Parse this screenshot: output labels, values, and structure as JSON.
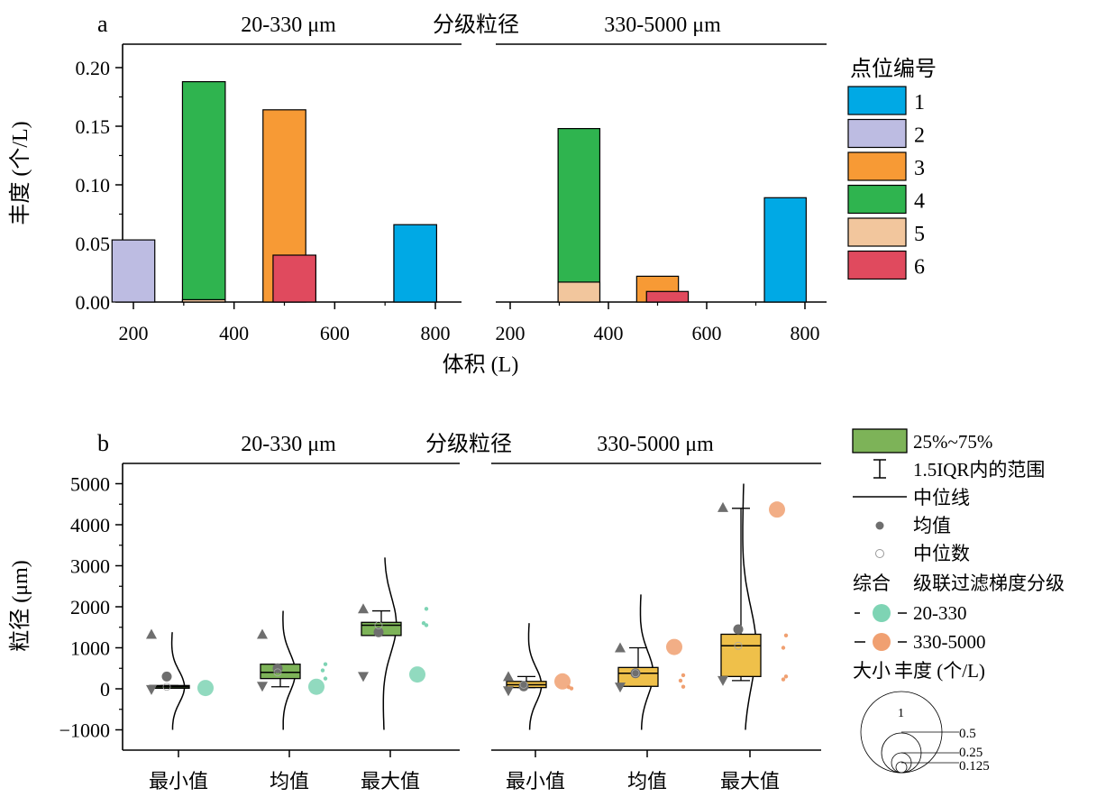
{
  "panel_a": {
    "label": "a",
    "section_left": "20-330 μm",
    "section_mid": "分级粒径",
    "section_right": "330-5000 μm",
    "ylabel": "丰度 (个/L)",
    "xlabel": "体积 (L)",
    "yticks": [
      "0.00",
      "0.05",
      "0.10",
      "0.15",
      "0.20"
    ],
    "xticks": [
      "200",
      "400",
      "600",
      "800"
    ],
    "legend_title": "点位编号",
    "legend": [
      {
        "label": "1",
        "color": "#00A9E5"
      },
      {
        "label": "2",
        "color": "#BDBCE2"
      },
      {
        "label": "3",
        "color": "#F79A35"
      },
      {
        "label": "4",
        "color": "#2FB44F"
      },
      {
        "label": "5",
        "color": "#F2C69D"
      },
      {
        "label": "6",
        "color": "#E04A5E"
      }
    ]
  },
  "panel_b": {
    "label": "b",
    "section_left": "20-330 μm",
    "section_mid": "分级粒径",
    "section_right": "330-5000 μm",
    "ylabel": "粒径 (μm)",
    "yticks": [
      "−1000",
      "0",
      "1000",
      "2000",
      "3000",
      "4000",
      "5000"
    ],
    "categories": [
      "最小值",
      "均值",
      "最大值"
    ],
    "legend": {
      "box": "25%~75%",
      "whisker": "1.5IQR内的范围",
      "median_line": "中位线",
      "mean": "均值",
      "median_point": "中位数",
      "group_title": "综合",
      "group_subtitle": "级联过滤梯度分级",
      "series_1": "20-330",
      "series_2": "330-5000",
      "size_title": "大小",
      "size_subtitle": "丰度 (个/L)",
      "size_values": [
        "1",
        "0.5",
        "0.25",
        "0.125"
      ]
    },
    "colors": {
      "box_fine": "#7DB358",
      "box_coarse": "#EFC04A",
      "dot_fine": "#7ED4B4",
      "dot_coarse": "#F0A071",
      "grey": "#6E6E6E"
    }
  },
  "chart_data": [
    {
      "type": "bar",
      "title": "a",
      "panels": [
        "20-330 μm",
        "330-5000 μm"
      ],
      "xlabel": "体积 (L)",
      "ylabel": "丰度 (个/L)",
      "xlim": [
        180,
        820
      ],
      "ylim": [
        0,
        0.22
      ],
      "series": [
        {
          "name": "1",
          "color": "#00A9E5",
          "x": [
            760,
            760
          ],
          "panel": [
            "20-330 μm",
            "330-5000 μm"
          ],
          "values": [
            0.066,
            0.089
          ]
        },
        {
          "name": "2",
          "color": "#BDBCE2",
          "x": [
            200,
            200
          ],
          "panel": [
            "20-330 μm",
            "330-5000 μm"
          ],
          "values": [
            0.053,
            0.0
          ]
        },
        {
          "name": "3",
          "color": "#F79A35",
          "x": [
            500,
            500
          ],
          "panel": [
            "20-330 μm",
            "330-5000 μm"
          ],
          "values": [
            0.164,
            0.022
          ]
        },
        {
          "name": "4",
          "color": "#2FB44F",
          "x": [
            340,
            340
          ],
          "panel": [
            "20-330 μm",
            "330-5000 μm"
          ],
          "values": [
            0.188,
            0.148
          ]
        },
        {
          "name": "5",
          "color": "#F2C69D",
          "x": [
            340,
            340
          ],
          "panel": [
            "20-330 μm",
            "330-5000 μm"
          ],
          "values": [
            0.002,
            0.017
          ]
        },
        {
          "name": "6",
          "color": "#E04A5E",
          "x": [
            520,
            520
          ],
          "panel": [
            "20-330 μm",
            "330-5000 μm"
          ],
          "values": [
            0.04,
            0.009
          ]
        }
      ]
    },
    {
      "type": "box",
      "title": "b",
      "panels": [
        "20-330 μm",
        "330-5000 μm"
      ],
      "ylabel": "粒径 (μm)",
      "ylim": [
        -1500,
        5500
      ],
      "categories": [
        "最小值",
        "均值",
        "最大值"
      ],
      "groups": [
        {
          "panel": "20-330 μm",
          "boxes": [
            {
              "category": "最小值",
              "q1": 30,
              "median": 50,
              "q3": 80,
              "mean": 300,
              "whisker_low": 20,
              "whisker_high": 80,
              "markers": [
                1330,
                -20
              ],
              "dot_value": 20
            },
            {
              "category": "均值",
              "q1": 250,
              "median": 400,
              "q3": 600,
              "mean": 500,
              "whisker_low": 50,
              "whisker_high": 600,
              "markers": [
                1330,
                60
              ],
              "dot_value": 50,
              "small_dots": [
                600,
                450,
                250
              ]
            },
            {
              "category": "最大值",
              "q1": 1300,
              "median": 1550,
              "q3": 1620,
              "mean": 1380,
              "whisker_low": 1300,
              "whisker_high": 1900,
              "markers": [
                1950,
                300
              ],
              "dot_value": 350,
              "small_dots": [
                1950,
                1600,
                1550
              ]
            }
          ]
        },
        {
          "panel": "330-5000 μm",
          "boxes": [
            {
              "category": "最小值",
              "q1": 30,
              "median": 100,
              "q3": 180,
              "mean": 60,
              "whisker_low": 30,
              "whisker_high": 300,
              "markers": [
                300,
                -50
              ],
              "dot_value": 180,
              "small_dots": [
                10,
                40
              ]
            },
            {
              "category": "均值",
              "q1": 60,
              "median": 380,
              "q3": 520,
              "mean": 380,
              "whisker_low": 60,
              "whisker_high": 1000,
              "markers": [
                1000,
                40
              ],
              "dot_value": 1020,
              "small_dots": [
                330,
                200,
                50
              ]
            },
            {
              "category": "最大值",
              "q1": 300,
              "median": 1050,
              "q3": 1330,
              "mean": 1450,
              "whisker_low": 200,
              "whisker_high": 4400,
              "markers": [
                4420,
                200
              ],
              "dot_value": 4370,
              "small_dots": [
                1300,
                1000,
                300,
                230
              ]
            }
          ]
        }
      ]
    }
  ]
}
